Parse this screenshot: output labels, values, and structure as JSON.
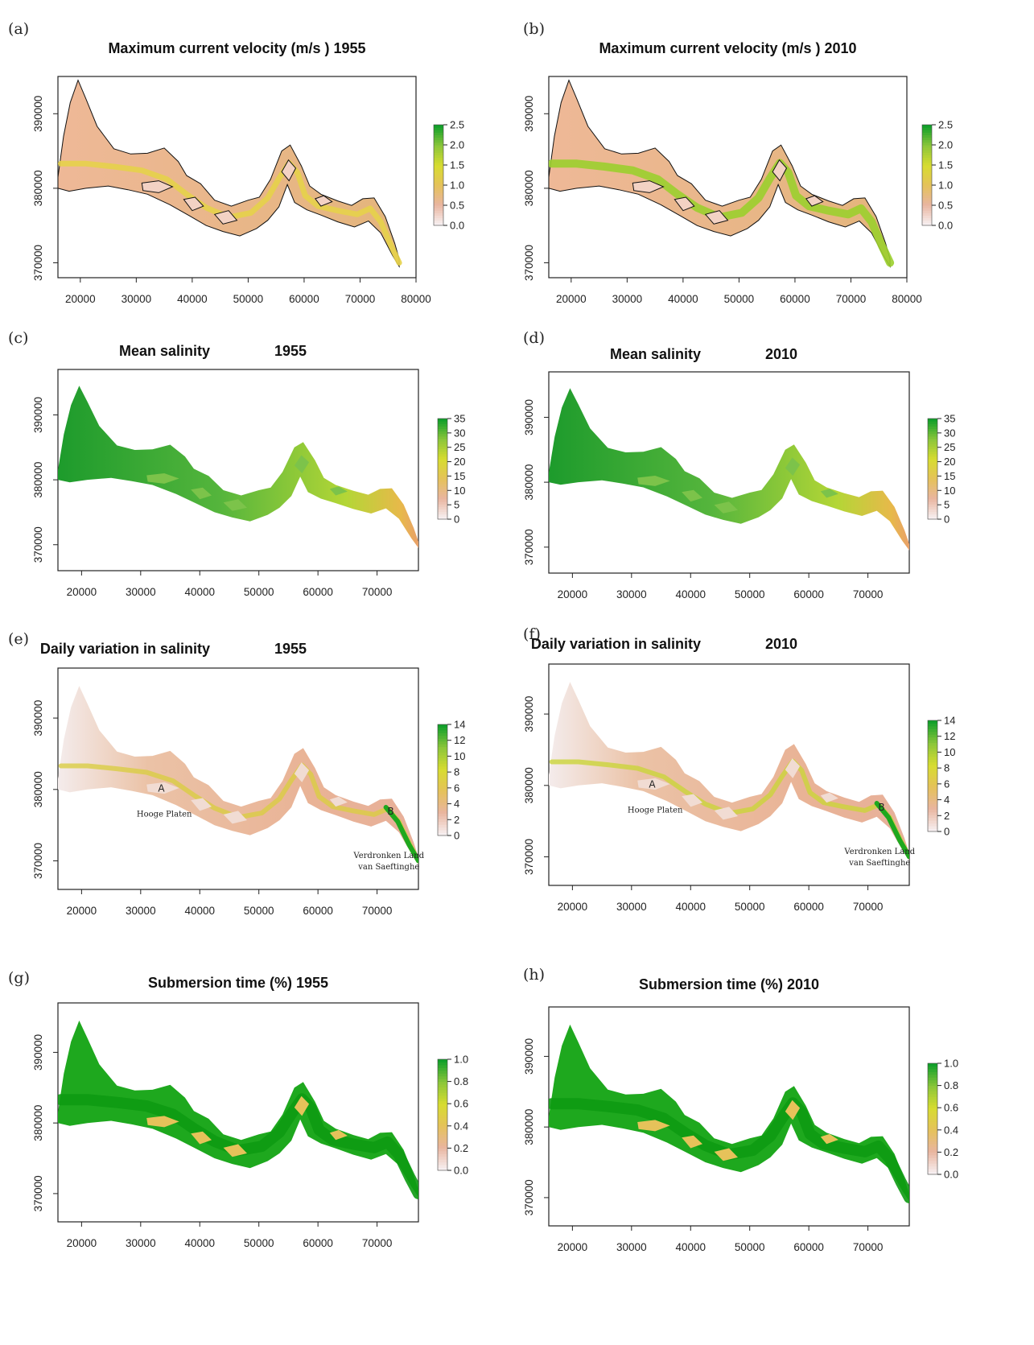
{
  "chart_data": [
    {
      "id": "a",
      "type": "heatmap",
      "panel_label": "(a)",
      "title": "Maximum current velocity (m/s ) 1955",
      "x_ticks": [
        "20000",
        "30000",
        "40000",
        "50000",
        "60000",
        "70000",
        "80000"
      ],
      "x_values": [
        20000,
        30000,
        40000,
        50000,
        60000,
        70000,
        80000
      ],
      "y_ticks": [
        "370000",
        "380000",
        "390000"
      ],
      "y_values": [
        370000,
        380000,
        390000
      ],
      "xlim": [
        16000,
        80000
      ],
      "ylim": [
        368000,
        395000
      ],
      "colorbar_ticks": [
        "0.0",
        "0.5",
        "1.0",
        "1.5",
        "2.0",
        "2.5"
      ],
      "colorbar_range": [
        0,
        2.5
      ],
      "fill_color": "#e8b88a",
      "channel_color": "#e6d24a",
      "contour": true,
      "annotations": []
    },
    {
      "id": "b",
      "type": "heatmap",
      "panel_label": "(b)",
      "title": "Maximum current velocity (m/s ) 2010",
      "x_ticks": [
        "20000",
        "30000",
        "40000",
        "50000",
        "60000",
        "70000",
        "80000"
      ],
      "x_values": [
        20000,
        30000,
        40000,
        50000,
        60000,
        70000,
        80000
      ],
      "y_ticks": [
        "370000",
        "380000",
        "390000"
      ],
      "y_values": [
        370000,
        380000,
        390000
      ],
      "xlim": [
        16000,
        80000
      ],
      "ylim": [
        368000,
        395000
      ],
      "colorbar_ticks": [
        "0.0",
        "0.5",
        "1.0",
        "1.5",
        "2.0",
        "2.5"
      ],
      "colorbar_range": [
        0,
        2.5
      ],
      "fill_color": "#e8b88a",
      "channel_color": "#9bcf2e",
      "contour": true,
      "annotations": []
    },
    {
      "id": "c",
      "type": "heatmap",
      "panel_label": "(c)",
      "title_parts": [
        "Mean salinity",
        "1955"
      ],
      "x_ticks": [
        "20000",
        "30000",
        "40000",
        "50000",
        "60000",
        "70000"
      ],
      "x_values": [
        20000,
        30000,
        40000,
        50000,
        60000,
        70000
      ],
      "y_ticks": [
        "370000",
        "380000",
        "390000"
      ],
      "y_values": [
        370000,
        380000,
        390000
      ],
      "xlim": [
        16000,
        77000
      ],
      "ylim": [
        366000,
        397000
      ],
      "colorbar_ticks": [
        "0",
        "5",
        "10",
        "15",
        "20",
        "25",
        "30",
        "35"
      ],
      "colorbar_range": [
        0,
        35
      ],
      "fill_color": "#3faf34",
      "channel_color": "#a9d13a",
      "contour": false,
      "annotations": []
    },
    {
      "id": "d",
      "type": "heatmap",
      "panel_label": "(d)",
      "title_parts": [
        "Mean salinity",
        "2010"
      ],
      "x_ticks": [
        "20000",
        "30000",
        "40000",
        "50000",
        "60000",
        "70000"
      ],
      "x_values": [
        20000,
        30000,
        40000,
        50000,
        60000,
        70000
      ],
      "y_ticks": [
        "370000",
        "380000",
        "390000"
      ],
      "y_values": [
        370000,
        380000,
        390000
      ],
      "xlim": [
        16000,
        77000
      ],
      "ylim": [
        366000,
        397000
      ],
      "colorbar_ticks": [
        "0",
        "5",
        "10",
        "15",
        "20",
        "25",
        "30",
        "35"
      ],
      "colorbar_range": [
        0,
        35
      ],
      "fill_color": "#3faf34",
      "channel_color": "#a9d13a",
      "contour": false,
      "annotations": []
    },
    {
      "id": "e",
      "type": "heatmap",
      "panel_label": "(e)",
      "title_parts": [
        "Daily variation in salinity",
        "1955"
      ],
      "x_ticks": [
        "20000",
        "30000",
        "40000",
        "50000",
        "60000",
        "70000"
      ],
      "x_values": [
        20000,
        30000,
        40000,
        50000,
        60000,
        70000
      ],
      "y_ticks": [
        "370000",
        "380000",
        "390000"
      ],
      "y_values": [
        370000,
        380000,
        390000
      ],
      "xlim": [
        16000,
        77000
      ],
      "ylim": [
        366000,
        397000
      ],
      "colorbar_ticks": [
        "0",
        "2",
        "4",
        "6",
        "8",
        "10",
        "12",
        "14"
      ],
      "colorbar_range": [
        0,
        14
      ],
      "fill_color": "#e9b99c",
      "channel_color": "#d9cd44",
      "contour": false,
      "annotations": [
        {
          "text": "A",
          "x": 33500,
          "y": 379700,
          "style": "letter"
        },
        {
          "text": "Hooge Platen",
          "x": 34000,
          "y": 376200,
          "style": "serif"
        },
        {
          "text": "B",
          "x": 72300,
          "y": 376500,
          "style": "letter"
        },
        {
          "text": "Verdronken Land",
          "x": 72000,
          "y": 370400,
          "style": "serif"
        },
        {
          "text": "van Saeftinghe",
          "x": 72000,
          "y": 368800,
          "style": "serif"
        }
      ]
    },
    {
      "id": "f",
      "type": "heatmap",
      "panel_label": "(f)",
      "title_parts": [
        "Daily variation in salinity",
        "2010"
      ],
      "x_ticks": [
        "20000",
        "30000",
        "40000",
        "50000",
        "60000",
        "70000"
      ],
      "x_values": [
        20000,
        30000,
        40000,
        50000,
        60000,
        70000
      ],
      "y_ticks": [
        "370000",
        "380000",
        "390000"
      ],
      "y_values": [
        370000,
        380000,
        390000
      ],
      "xlim": [
        16000,
        77000
      ],
      "ylim": [
        366000,
        397000
      ],
      "colorbar_ticks": [
        "0",
        "2",
        "4",
        "6",
        "8",
        "10",
        "12",
        "14"
      ],
      "colorbar_range": [
        0,
        14
      ],
      "fill_color": "#e9b99c",
      "channel_color": "#cbd53a",
      "contour": false,
      "annotations": [
        {
          "text": "A",
          "x": 33500,
          "y": 379700,
          "style": "letter"
        },
        {
          "text": "Hooge Platen",
          "x": 34000,
          "y": 376200,
          "style": "serif"
        },
        {
          "text": "B",
          "x": 72300,
          "y": 376500,
          "style": "letter"
        },
        {
          "text": "Verdronken Land",
          "x": 72000,
          "y": 370400,
          "style": "serif"
        },
        {
          "text": "van Saeftinghe",
          "x": 72000,
          "y": 368800,
          "style": "serif"
        }
      ]
    },
    {
      "id": "g",
      "type": "heatmap",
      "panel_label": "(g)",
      "title": "Submersion time (%) 1955",
      "x_ticks": [
        "20000",
        "30000",
        "40000",
        "50000",
        "60000",
        "70000"
      ],
      "x_values": [
        20000,
        30000,
        40000,
        50000,
        60000,
        70000
      ],
      "y_ticks": [
        "370000",
        "380000",
        "390000"
      ],
      "y_values": [
        370000,
        380000,
        390000
      ],
      "xlim": [
        16000,
        77000
      ],
      "ylim": [
        366000,
        397000
      ],
      "colorbar_ticks": [
        "0.0",
        "0.2",
        "0.4",
        "0.6",
        "0.8",
        "1.0"
      ],
      "colorbar_range": [
        0,
        1
      ],
      "fill_color": "#1ea81e",
      "channel_color": "#0d9a12",
      "contour": false,
      "annotations": []
    },
    {
      "id": "h",
      "type": "heatmap",
      "panel_label": "(h)",
      "title": "Submersion time (%) 2010",
      "x_ticks": [
        "20000",
        "30000",
        "40000",
        "50000",
        "60000",
        "70000"
      ],
      "x_values": [
        20000,
        30000,
        40000,
        50000,
        60000,
        70000
      ],
      "y_ticks": [
        "370000",
        "380000",
        "390000"
      ],
      "y_values": [
        370000,
        380000,
        390000
      ],
      "xlim": [
        16000,
        77000
      ],
      "ylim": [
        366000,
        397000
      ],
      "colorbar_ticks": [
        "0.0",
        "0.2",
        "0.4",
        "0.6",
        "0.8",
        "1.0"
      ],
      "colorbar_range": [
        0,
        1
      ],
      "fill_color": "#1ea81e",
      "channel_color": "#0d9a12",
      "contour": false,
      "annotations": []
    }
  ],
  "colors": {
    "scale_low": "#f7f0f0",
    "scale_mid_low": "#e8b09a",
    "scale_mid": "#e7c85a",
    "scale_mid_high": "#d9df2f",
    "scale_high": "#12a02a",
    "frame": "#222222",
    "contour": "#111111"
  }
}
